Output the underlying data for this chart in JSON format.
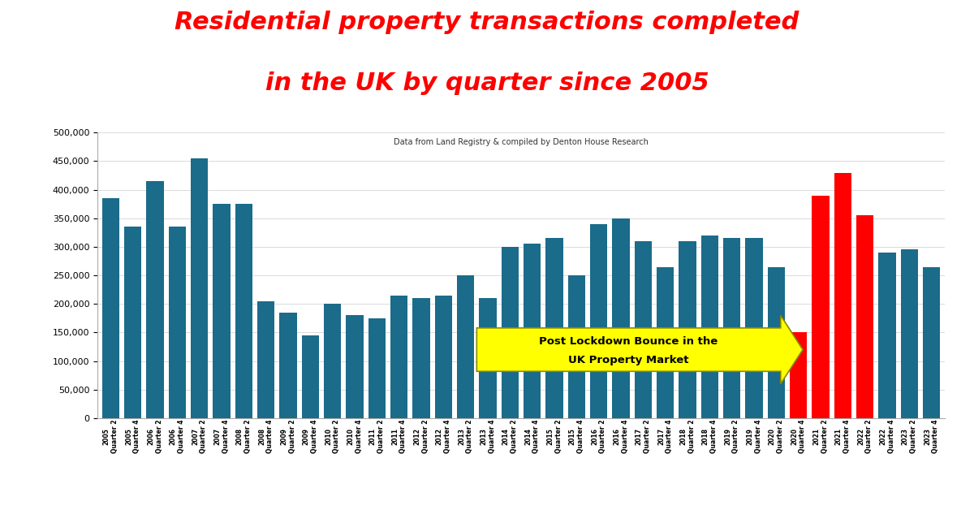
{
  "title_line1": "Residential property transactions completed",
  "title_line2": "in the UK by quarter since 2005",
  "title_color": "#FF0000",
  "subtitle": "Data from Land Registry & compiled by Denton House Research",
  "background_color": "#FFFFFF",
  "plot_bg_color": "#FFFFFF",
  "teal_color": "#1B6B8A",
  "red_color": "#FF0000",
  "yellow_color": "#FFFF00",
  "arrow_text_line1": "Post Lockdown Bounce in the",
  "arrow_text_line2": "UK Property Market",
  "bar_data": [
    [
      "2005",
      "Quarter 2",
      385000
    ],
    [
      "2005",
      "Quarter 4",
      335000
    ],
    [
      "2006",
      "Quarter 2",
      415000
    ],
    [
      "2006",
      "Quarter 4",
      335000
    ],
    [
      "2007",
      "Quarter 2",
      455000
    ],
    [
      "2007",
      "Quarter 4",
      375000
    ],
    [
      "2008",
      "Quarter 2",
      375000
    ],
    [
      "2008",
      "Quarter 4",
      205000
    ],
    [
      "2009",
      "Quarter 2",
      185000
    ],
    [
      "2009",
      "Quarter 4",
      145000
    ],
    [
      "2010",
      "Quarter 2",
      200000
    ],
    [
      "2010",
      "Quarter 4",
      180000
    ],
    [
      "2011",
      "Quarter 2",
      175000
    ],
    [
      "2011",
      "Quarter 4",
      215000
    ],
    [
      "2012",
      "Quarter 2",
      210000
    ],
    [
      "2012",
      "Quarter 4",
      215000
    ],
    [
      "2013",
      "Quarter 2",
      250000
    ],
    [
      "2013",
      "Quarter 4",
      210000
    ],
    [
      "2014",
      "Quarter 2",
      300000
    ],
    [
      "2014",
      "Quarter 4",
      305000
    ],
    [
      "2015",
      "Quarter 2",
      315000
    ],
    [
      "2015",
      "Quarter 4",
      250000
    ],
    [
      "2016",
      "Quarter 2",
      340000
    ],
    [
      "2016",
      "Quarter 4",
      350000
    ],
    [
      "2017",
      "Quarter 2",
      310000
    ],
    [
      "2017",
      "Quarter 4",
      265000
    ],
    [
      "2018",
      "Quarter 2",
      310000
    ],
    [
      "2018",
      "Quarter 4",
      320000
    ],
    [
      "2019",
      "Quarter 2",
      315000
    ],
    [
      "2019",
      "Quarter 4",
      315000
    ],
    [
      "2020",
      "Quarter 2",
      265000
    ],
    [
      "2020",
      "Quarter 4",
      150000
    ],
    [
      "2021",
      "Quarter 2",
      390000
    ],
    [
      "2021",
      "Quarter 4",
      430000
    ],
    [
      "2022",
      "Quarter 2",
      355000
    ],
    [
      "2022",
      "Quarter 4",
      290000
    ],
    [
      "2023",
      "Quarter 2",
      295000
    ],
    [
      "2023",
      "Quarter 4",
      265000
    ]
  ],
  "red_indices": [
    31,
    32,
    33,
    34
  ],
  "ylim": [
    0,
    500000
  ],
  "yticks": [
    0,
    50000,
    100000,
    150000,
    200000,
    250000,
    300000,
    350000,
    400000,
    450000,
    500000
  ],
  "grid_color": "#CCCCCC",
  "title_fontsize": 22,
  "subtitle_fontsize": 7
}
